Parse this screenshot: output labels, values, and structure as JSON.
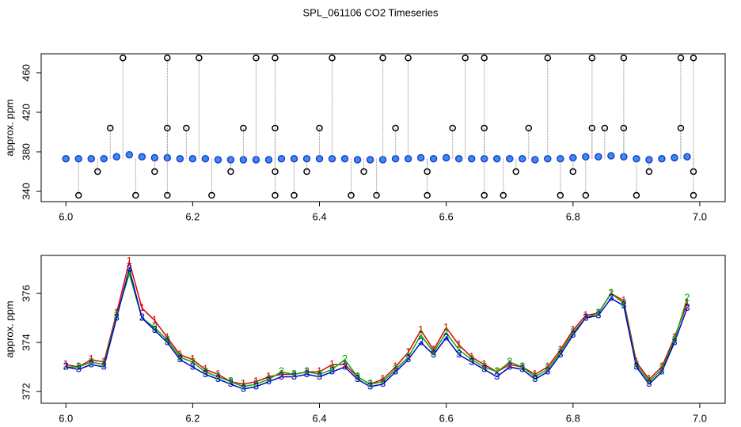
{
  "title": "SPL_061106  CO2 Timeseries",
  "chart_data": [
    {
      "type": "scatter",
      "ylabel": "approx. ppm",
      "xlim": [
        5.961,
        7.04
      ],
      "ylim": [
        329.6,
        479.2
      ],
      "xticks": [
        {
          "value": 6,
          "label": "6.0"
        },
        6.2,
        6.4,
        6.6,
        6.8,
        {
          "value": 7,
          "label": "7.0"
        }
      ],
      "yticks": [
        340,
        380,
        420,
        460
      ],
      "series": [
        {
          "color": "#1f3fd6",
          "x": [
            6.0,
            6.02,
            6.04,
            6.06,
            6.08,
            6.1,
            6.12,
            6.14,
            6.16,
            6.18,
            6.2,
            6.22,
            6.24,
            6.26,
            6.28,
            6.3,
            6.32,
            6.34,
            6.36,
            6.38,
            6.4,
            6.42,
            6.44,
            6.46,
            6.48,
            6.5,
            6.52,
            6.54,
            6.56,
            6.58,
            6.6,
            6.62,
            6.64,
            6.66,
            6.68,
            6.7,
            6.72,
            6.74,
            6.76,
            6.78,
            6.8,
            6.82,
            6.84,
            6.86,
            6.88,
            6.9,
            6.92,
            6.94,
            6.96,
            6.98
          ],
          "values": [
            373,
            373,
            373,
            373,
            375,
            377,
            375,
            374,
            374,
            373,
            373,
            373,
            372,
            372,
            372,
            372,
            372,
            373,
            373,
            373,
            373,
            373,
            373,
            372,
            372,
            372,
            373,
            373,
            374,
            373,
            374,
            373,
            373,
            373,
            373,
            373,
            373,
            372,
            373,
            373,
            374,
            375,
            375,
            376,
            375,
            373,
            372,
            373,
            374,
            375
          ]
        },
        {
          "color": "#000000",
          "x": [
            6.09,
            6.16,
            6.21,
            6.3,
            6.33,
            6.42,
            6.5,
            6.54,
            6.63,
            6.66,
            6.76,
            6.83,
            6.88,
            6.97,
            6.99,
            6.07,
            6.16,
            6.19,
            6.28,
            6.33,
            6.4,
            6.52,
            6.61,
            6.66,
            6.73,
            6.83,
            6.85,
            6.88,
            6.97,
            6.05,
            6.14,
            6.26,
            6.33,
            6.38,
            6.47,
            6.57,
            6.71,
            6.8,
            6.92,
            6.99,
            6.02,
            6.11,
            6.16,
            6.23,
            6.33,
            6.36,
            6.45,
            6.49,
            6.57,
            6.66,
            6.69,
            6.78,
            6.82,
            6.9,
            6.99
          ],
          "values": [
            475,
            475,
            475,
            475,
            475,
            475,
            475,
            475,
            475,
            475,
            475,
            475,
            475,
            475,
            475,
            404,
            404,
            404,
            404,
            404,
            404,
            404,
            404,
            404,
            404,
            404,
            404,
            404,
            404,
            360,
            360,
            360,
            360,
            360,
            360,
            360,
            360,
            360,
            360,
            360,
            336,
            336,
            336,
            336,
            336,
            336,
            336,
            336,
            336,
            336,
            336,
            336,
            336,
            336,
            336
          ]
        }
      ]
    },
    {
      "type": "line",
      "ylabel": "approx. ppm",
      "xlim": [
        5.961,
        7.04
      ],
      "ylim": [
        371.52,
        377.55
      ],
      "xticks": [
        {
          "value": 6,
          "label": "6.0"
        },
        6.2,
        6.4,
        6.6,
        6.8,
        {
          "value": 7,
          "label": "7.0"
        }
      ],
      "yticks": [
        372,
        374,
        376
      ],
      "x": [
        6.0,
        6.02,
        6.04,
        6.06,
        6.08,
        6.1,
        6.12,
        6.14,
        6.16,
        6.18,
        6.2,
        6.22,
        6.24,
        6.26,
        6.28,
        6.3,
        6.32,
        6.34,
        6.36,
        6.38,
        6.4,
        6.42,
        6.44,
        6.46,
        6.48,
        6.5,
        6.52,
        6.54,
        6.56,
        6.58,
        6.6,
        6.62,
        6.64,
        6.66,
        6.68,
        6.7,
        6.72,
        6.74,
        6.76,
        6.78,
        6.8,
        6.82,
        6.84,
        6.86,
        6.88,
        6.9,
        6.92,
        6.94,
        6.96,
        6.98
      ],
      "series": [
        {
          "marker": "1",
          "color": "#e00000",
          "values": [
            373.1,
            373.0,
            373.3,
            373.2,
            375.2,
            377.3,
            375.4,
            374.9,
            374.2,
            373.5,
            373.3,
            372.9,
            372.7,
            372.4,
            372.3,
            372.4,
            372.6,
            372.7,
            372.7,
            372.8,
            372.8,
            373.1,
            373.1,
            372.6,
            372.3,
            372.5,
            373.0,
            373.6,
            374.5,
            373.7,
            374.6,
            373.9,
            373.4,
            373.1,
            372.8,
            373.1,
            373.0,
            372.7,
            373.0,
            373.7,
            374.5,
            375.1,
            375.2,
            376.0,
            375.7,
            373.2,
            372.5,
            373.0,
            374.2,
            375.6
          ]
        },
        {
          "marker": "2",
          "color": "#00b000",
          "values": [
            373.0,
            373.0,
            373.2,
            373.1,
            375.1,
            376.8,
            375.0,
            374.6,
            374.1,
            373.4,
            373.2,
            372.8,
            372.6,
            372.4,
            372.2,
            372.3,
            372.5,
            372.8,
            372.7,
            372.8,
            372.7,
            372.9,
            373.3,
            372.6,
            372.3,
            372.4,
            372.9,
            373.4,
            374.3,
            373.6,
            374.4,
            373.7,
            373.3,
            373.0,
            372.8,
            373.2,
            373.0,
            372.6,
            372.9,
            373.6,
            374.4,
            375.0,
            375.2,
            376.0,
            375.6,
            373.1,
            372.4,
            372.9,
            374.1,
            375.8
          ]
        },
        {
          "marker": "3",
          "color": "#0000cc",
          "values": [
            373.0,
            372.9,
            373.1,
            373.0,
            375.0,
            377.0,
            375.0,
            374.5,
            374.0,
            373.3,
            373.0,
            372.7,
            372.5,
            372.3,
            372.1,
            372.2,
            372.4,
            372.6,
            372.6,
            372.7,
            372.6,
            372.8,
            373.0,
            372.5,
            372.2,
            372.3,
            372.8,
            373.3,
            374.0,
            373.5,
            374.2,
            373.5,
            373.2,
            372.9,
            372.6,
            373.0,
            372.9,
            372.5,
            372.8,
            373.5,
            374.3,
            375.0,
            375.1,
            375.8,
            375.5,
            373.0,
            372.3,
            372.8,
            374.0,
            375.4
          ]
        }
      ]
    }
  ]
}
